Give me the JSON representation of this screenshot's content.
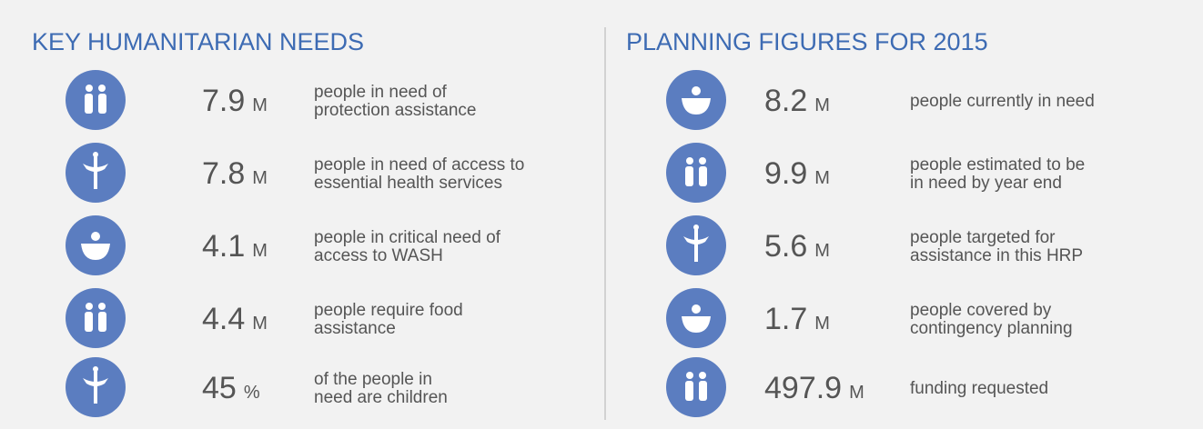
{
  "sections": [
    {
      "title": "KEY HUMANITARIAN NEEDS",
      "items": [
        {
          "value": 7.9,
          "unit": "M",
          "text": [
            "people in need of",
            "protection assistance"
          ]
        },
        {
          "value": 7.8,
          "unit": "M",
          "text": [
            "people in need of access to",
            "essential health services"
          ]
        },
        {
          "value": 4.1,
          "unit": "M",
          "text": [
            "people in critical need of",
            "access to WASH"
          ]
        },
        {
          "value": 4.4,
          "unit": "M",
          "text": [
            "people require food",
            "assistance"
          ]
        },
        {
          "value": 45,
          "unit": "%",
          "text": [
            "of the people in",
            "need are children"
          ]
        }
      ]
    },
    {
      "title": "PLANNING FIGURES FOR 2015",
      "items": [
        {
          "value": 8.2,
          "unit": "M",
          "text": [
            "people currently in need"
          ]
        },
        {
          "value": 9.9,
          "unit": "M",
          "text": [
            "people estimated to be",
            "in need by year end"
          ]
        },
        {
          "value": 5.6,
          "unit": "M",
          "text": [
            "people targeted for",
            "assistance in this HRP"
          ]
        },
        {
          "value": 1.7,
          "unit": "M",
          "text": [
            "people covered by",
            "contingency planning"
          ]
        },
        {
          "value": 497.9,
          "unit": "M",
          "text": [
            "funding requested"
          ]
        }
      ]
    }
  ]
}
